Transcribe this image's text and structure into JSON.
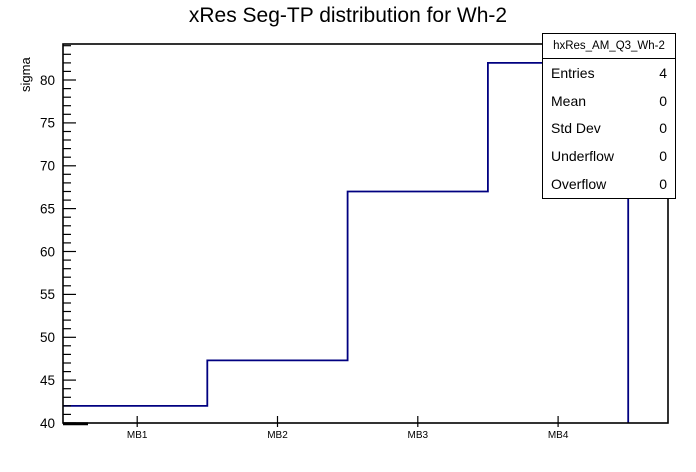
{
  "title": "xRes Seg-TP distribution for Wh-2",
  "chart_data": {
    "type": "line",
    "style": "step-histogram-outline",
    "title": "xRes Seg-TP distribution for Wh-2",
    "categories": [
      "MB1",
      "MB2",
      "MB3",
      "MB4"
    ],
    "values": [
      42,
      47.3,
      67,
      82
    ],
    "xlabel": "",
    "ylabel": "sigma",
    "ylim": [
      40,
      84.2
    ],
    "y_major_ticks": [
      40,
      45,
      50,
      55,
      60,
      65,
      70,
      75,
      80
    ],
    "y_minor_step": 1,
    "grid": false,
    "legend_position": "top-right",
    "line_color": "#000080",
    "frame_color": "#000000",
    "background_color": "#ffffff"
  },
  "stats_box": {
    "title": "hxRes_AM_Q3_Wh-2",
    "rows": [
      {
        "label": "Entries",
        "value": "4"
      },
      {
        "label": "Mean",
        "value": "0"
      },
      {
        "label": "Std Dev",
        "value": "0"
      },
      {
        "label": "Underflow",
        "value": "0"
      },
      {
        "label": "Overflow",
        "value": "0"
      }
    ]
  }
}
